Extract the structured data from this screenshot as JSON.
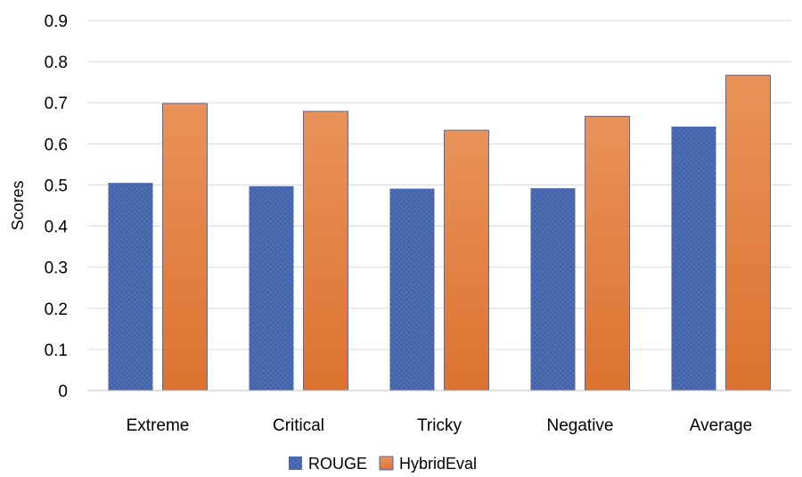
{
  "chart_data": {
    "type": "bar",
    "categories": [
      "Extreme",
      "Critical",
      "Tricky",
      "Negative",
      "Average"
    ],
    "series": [
      {
        "name": "ROUGE",
        "values": [
          0.505,
          0.497,
          0.491,
          0.492,
          0.642
        ],
        "color": "#4a6cb3"
      },
      {
        "name": "HybridEval",
        "values": [
          0.698,
          0.679,
          0.633,
          0.667,
          0.767
        ],
        "color": "#e8873e"
      }
    ],
    "yticks": [
      "0",
      "0.1",
      "0.2",
      "0.3",
      "0.4",
      "0.5",
      "0.6",
      "0.7",
      "0.8",
      "0.9"
    ],
    "ylabel": "Scores",
    "xlabel": "",
    "title": "",
    "ylim": [
      0,
      0.9
    ],
    "grid": true,
    "legend_position": "bottom"
  }
}
